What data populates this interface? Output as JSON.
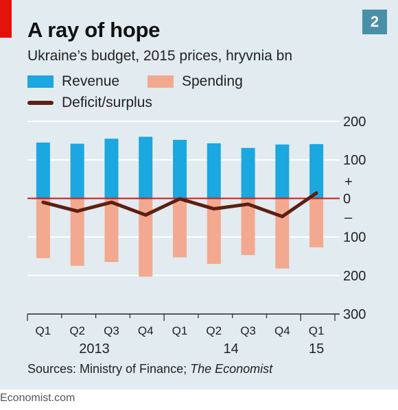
{
  "header": {
    "title": "A ray of hope",
    "subtitle": "Ukraine’s budget, 2015 prices, hryvnia bn",
    "badge": "2"
  },
  "colors": {
    "revenue": "#1ba7df",
    "spending": "#f2a98f",
    "deficit": "#5e1f12",
    "zero_line": "#e3120b",
    "grid": "#ffffff",
    "panel": "#e2ebf0"
  },
  "chart_data": {
    "type": "bar",
    "categories": [
      "Q1",
      "Q2",
      "Q3",
      "Q4",
      "Q1",
      "Q2",
      "Q3",
      "Q4",
      "Q1"
    ],
    "years": [
      {
        "label": "2013",
        "from": 0,
        "to": 3
      },
      {
        "label": "14",
        "from": 4,
        "to": 7
      },
      {
        "label": "15",
        "from": 8,
        "to": 8
      }
    ],
    "series": [
      {
        "name": "Revenue",
        "kind": "bar",
        "values": [
          145,
          142,
          155,
          160,
          152,
          143,
          131,
          140,
          141
        ]
      },
      {
        "name": "Spending",
        "kind": "bar",
        "values": [
          -155,
          -175,
          -165,
          -203,
          -153,
          -170,
          -147,
          -182,
          -127
        ]
      },
      {
        "name": "Deficit/surplus",
        "kind": "line",
        "values": [
          -10,
          -33,
          -10,
          -43,
          -1,
          -27,
          -15,
          -47,
          14
        ]
      }
    ],
    "ylim": [
      -300,
      200
    ],
    "yticks": [
      {
        "value": 200,
        "label": "200"
      },
      {
        "value": 100,
        "label": "100"
      },
      {
        "value": 0,
        "label": "0"
      },
      {
        "value": -100,
        "label": "100"
      },
      {
        "value": -200,
        "label": "200"
      },
      {
        "value": -300,
        "label": "300"
      }
    ],
    "sign_labels": {
      "plus": "+",
      "minus": "–"
    },
    "grid": true,
    "legend_position": "top-left",
    "axis_position": "right"
  },
  "source": {
    "prefix": "Sources: Ministry of Finance; ",
    "italic": "The Economist"
  },
  "footer": "Economist.com"
}
